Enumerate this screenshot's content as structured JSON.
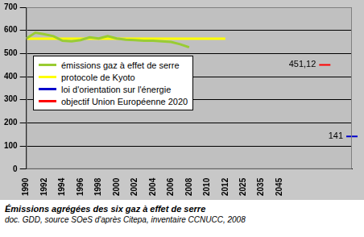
{
  "chart_data": {
    "type": "line",
    "title": "Émissions agrégées des six gaz à effet de serre",
    "subtitle": "doc. GDD, source SOeS d'après Citepa, inventaire CCNUCC, 2008",
    "categories": [
      1990,
      null,
      1992,
      null,
      1994,
      null,
      1996,
      null,
      1998,
      null,
      2000,
      null,
      2002,
      null,
      2004,
      null,
      2006,
      null,
      2008,
      null,
      2010,
      null,
      2012,
      null,
      2025,
      null,
      2035,
      null,
      2045,
      null,
      null,
      null,
      null,
      null,
      null,
      null,
      null
    ],
    "series": [
      {
        "name": "émissions gaz à effet de serre",
        "color": "#99cc33",
        "marker": "none",
        "values": [
          565,
          590,
          583,
          575,
          555,
          553,
          558,
          570,
          565,
          575,
          565,
          560,
          558,
          555,
          555,
          553,
          550,
          540,
          527,
          null,
          null,
          null,
          null,
          null,
          null,
          null,
          null,
          null,
          null,
          null,
          null,
          null,
          null,
          null,
          null,
          null,
          null
        ]
      },
      {
        "name": "protocole de Kyoto",
        "color": "#ffff00",
        "marker": "none",
        "values": [
          564,
          564,
          564,
          564,
          564,
          564,
          564,
          564,
          564,
          564,
          564,
          564,
          564,
          564,
          564,
          564,
          564,
          564,
          564,
          564,
          564,
          564,
          564,
          null,
          null,
          null,
          null,
          null,
          null,
          null,
          null,
          null,
          null,
          null,
          null,
          null,
          null
        ]
      },
      {
        "name": "loi d'orientation sur l'énergie",
        "color": "#0000cc",
        "marker": "line",
        "data_labels": true,
        "values": [
          null,
          null,
          null,
          null,
          null,
          null,
          null,
          null,
          null,
          null,
          null,
          null,
          null,
          null,
          null,
          null,
          null,
          null,
          null,
          null,
          null,
          null,
          null,
          null,
          null,
          null,
          null,
          null,
          null,
          null,
          null,
          null,
          null,
          null,
          null,
          null,
          141
        ]
      },
      {
        "name": "objectif Union Européenne 2020",
        "color": "#ff0000",
        "marker": "line",
        "data_labels": true,
        "values": [
          null,
          null,
          null,
          null,
          null,
          null,
          null,
          null,
          null,
          null,
          null,
          null,
          null,
          null,
          null,
          null,
          null,
          null,
          null,
          null,
          null,
          null,
          null,
          null,
          null,
          null,
          null,
          null,
          null,
          null,
          null,
          null,
          null,
          451.12,
          null,
          null,
          null
        ],
        "value_labels": [
          null,
          null,
          null,
          null,
          null,
          null,
          null,
          null,
          null,
          null,
          null,
          null,
          null,
          null,
          null,
          null,
          null,
          null,
          null,
          null,
          null,
          null,
          null,
          null,
          null,
          null,
          null,
          null,
          null,
          null,
          null,
          null,
          null,
          "451,12",
          null,
          null,
          null
        ]
      }
    ],
    "ylim": [
      0,
      700
    ],
    "yticks": [
      0,
      100,
      200,
      300,
      400,
      500,
      600,
      700
    ],
    "grid": true,
    "legend": "left"
  }
}
